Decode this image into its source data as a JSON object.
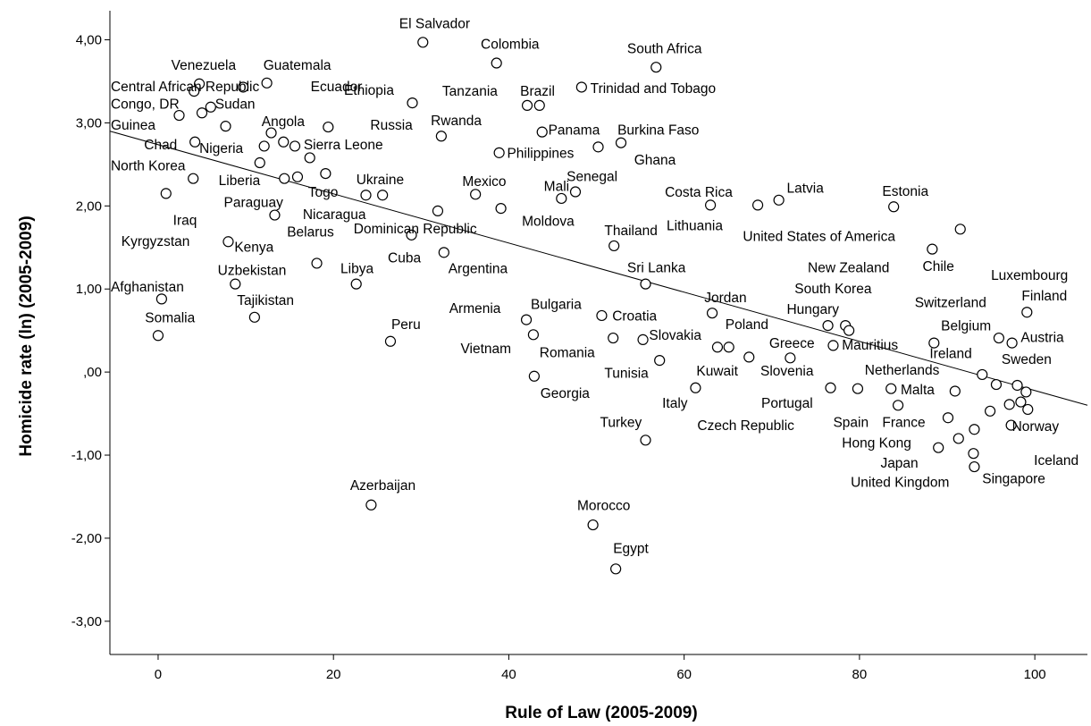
{
  "chart_data": {
    "type": "scatter",
    "xlabel": "Rule of Law (2005-2009)",
    "ylabel": "Homicide rate (ln) (2005-2009)",
    "xlim": [
      -5.5,
      106
    ],
    "ylim": [
      -3.4,
      4.35
    ],
    "x_ticks": [
      {
        "v": 0,
        "label": "0"
      },
      {
        "v": 20,
        "label": "20"
      },
      {
        "v": 40,
        "label": "40"
      },
      {
        "v": 60,
        "label": "60"
      },
      {
        "v": 80,
        "label": "80"
      },
      {
        "v": 100,
        "label": "100"
      }
    ],
    "y_ticks": [
      {
        "v": 4,
        "label": "4,00"
      },
      {
        "v": 3,
        "label": "3,00"
      },
      {
        "v": 2,
        "label": "2,00"
      },
      {
        "v": 1,
        "label": "1,00"
      },
      {
        "v": 0,
        "label": ",00"
      },
      {
        "v": -1,
        "label": "-1,00"
      },
      {
        "v": -2,
        "label": "-2,00"
      },
      {
        "v": -3,
        "label": "-3,00"
      }
    ],
    "fit_line": {
      "x": [
        -5.5,
        106
      ],
      "y": [
        2.9,
        -0.4
      ]
    },
    "grid": false,
    "points": [
      {
        "x": 30.2,
        "y": 3.97
      },
      {
        "x": 38.6,
        "y": 3.72
      },
      {
        "x": 56.8,
        "y": 3.67
      },
      {
        "x": 4.7,
        "y": 3.47
      },
      {
        "x": 9.7,
        "y": 3.43
      },
      {
        "x": 12.4,
        "y": 3.48
      },
      {
        "x": 4.1,
        "y": 3.38
      },
      {
        "x": 29.0,
        "y": 3.24
      },
      {
        "x": 48.3,
        "y": 3.43
      },
      {
        "x": 42.1,
        "y": 3.21
      },
      {
        "x": 43.5,
        "y": 3.21
      },
      {
        "x": 6.0,
        "y": 3.19
      },
      {
        "x": 5.0,
        "y": 3.12
      },
      {
        "x": 2.4,
        "y": 3.09
      },
      {
        "x": 7.7,
        "y": 2.96
      },
      {
        "x": 19.4,
        "y": 2.95
      },
      {
        "x": 12.9,
        "y": 2.88
      },
      {
        "x": 32.3,
        "y": 2.84
      },
      {
        "x": 43.8,
        "y": 2.89
      },
      {
        "x": 4.2,
        "y": 2.77
      },
      {
        "x": 12.1,
        "y": 2.72
      },
      {
        "x": 14.3,
        "y": 2.77
      },
      {
        "x": 15.6,
        "y": 2.72
      },
      {
        "x": 17.3,
        "y": 2.58
      },
      {
        "x": 50.2,
        "y": 2.71
      },
      {
        "x": 52.8,
        "y": 2.76
      },
      {
        "x": 38.9,
        "y": 2.64
      },
      {
        "x": 11.6,
        "y": 2.52
      },
      {
        "x": 15.9,
        "y": 2.35
      },
      {
        "x": 19.1,
        "y": 2.39
      },
      {
        "x": 4.0,
        "y": 2.33
      },
      {
        "x": 14.4,
        "y": 2.33
      },
      {
        "x": 0.9,
        "y": 2.15
      },
      {
        "x": 23.7,
        "y": 2.13
      },
      {
        "x": 25.6,
        "y": 2.13
      },
      {
        "x": 36.2,
        "y": 2.14
      },
      {
        "x": 47.6,
        "y": 2.17
      },
      {
        "x": 46.0,
        "y": 2.09
      },
      {
        "x": 13.3,
        "y": 1.89
      },
      {
        "x": 31.9,
        "y": 1.94
      },
      {
        "x": 39.1,
        "y": 1.97
      },
      {
        "x": 63.0,
        "y": 2.01
      },
      {
        "x": 68.4,
        "y": 2.01
      },
      {
        "x": 70.8,
        "y": 2.07
      },
      {
        "x": 83.9,
        "y": 1.99
      },
      {
        "x": 28.9,
        "y": 1.65
      },
      {
        "x": 8.0,
        "y": 1.57
      },
      {
        "x": 32.6,
        "y": 1.44
      },
      {
        "x": 52.0,
        "y": 1.52
      },
      {
        "x": 91.5,
        "y": 1.72
      },
      {
        "x": 88.3,
        "y": 1.48
      },
      {
        "x": 18.1,
        "y": 1.31
      },
      {
        "x": 22.6,
        "y": 1.06
      },
      {
        "x": 8.8,
        "y": 1.06
      },
      {
        "x": 55.6,
        "y": 1.06
      },
      {
        "x": 0.4,
        "y": 0.88
      },
      {
        "x": 11.0,
        "y": 0.66
      },
      {
        "x": 0.0,
        "y": 0.44
      },
      {
        "x": 26.5,
        "y": 0.37
      },
      {
        "x": 42.0,
        "y": 0.63
      },
      {
        "x": 42.8,
        "y": 0.45
      },
      {
        "x": 50.6,
        "y": 0.68
      },
      {
        "x": 51.9,
        "y": 0.41
      },
      {
        "x": 55.3,
        "y": 0.39
      },
      {
        "x": 63.2,
        "y": 0.71
      },
      {
        "x": 63.8,
        "y": 0.3
      },
      {
        "x": 65.1,
        "y": 0.3
      },
      {
        "x": 76.4,
        "y": 0.56
      },
      {
        "x": 78.4,
        "y": 0.56
      },
      {
        "x": 78.8,
        "y": 0.5
      },
      {
        "x": 77.0,
        "y": 0.32
      },
      {
        "x": 67.4,
        "y": 0.18
      },
      {
        "x": 72.1,
        "y": 0.17
      },
      {
        "x": 88.5,
        "y": 0.35
      },
      {
        "x": 95.9,
        "y": 0.41
      },
      {
        "x": 97.4,
        "y": 0.35
      },
      {
        "x": 99.1,
        "y": 0.72
      },
      {
        "x": 57.2,
        "y": 0.14
      },
      {
        "x": 42.9,
        "y": -0.05
      },
      {
        "x": 61.3,
        "y": -0.19
      },
      {
        "x": 76.7,
        "y": -0.19
      },
      {
        "x": 79.8,
        "y": -0.2
      },
      {
        "x": 83.6,
        "y": -0.2
      },
      {
        "x": 90.9,
        "y": -0.23
      },
      {
        "x": 94.0,
        "y": -0.03
      },
      {
        "x": 95.6,
        "y": -0.15
      },
      {
        "x": 98.0,
        "y": -0.16
      },
      {
        "x": 99.0,
        "y": -0.24
      },
      {
        "x": 84.4,
        "y": -0.4
      },
      {
        "x": 97.1,
        "y": -0.39
      },
      {
        "x": 98.4,
        "y": -0.36
      },
      {
        "x": 99.2,
        "y": -0.45
      },
      {
        "x": 94.9,
        "y": -0.47
      },
      {
        "x": 90.1,
        "y": -0.55
      },
      {
        "x": 93.1,
        "y": -0.69
      },
      {
        "x": 97.3,
        "y": -0.64
      },
      {
        "x": 55.6,
        "y": -0.82
      },
      {
        "x": 89.0,
        "y": -0.91
      },
      {
        "x": 91.3,
        "y": -0.8
      },
      {
        "x": 93.0,
        "y": -0.98
      },
      {
        "x": 93.1,
        "y": -1.14
      },
      {
        "x": 24.3,
        "y": -1.6
      },
      {
        "x": 49.6,
        "y": -1.84
      },
      {
        "x": 52.2,
        "y": -2.37
      }
    ],
    "labels": [
      {
        "text": "El Salvador",
        "x": 27.5,
        "y": 4.14
      },
      {
        "text": "Colombia",
        "x": 36.8,
        "y": 3.89
      },
      {
        "text": "South Africa",
        "x": 53.5,
        "y": 3.84
      },
      {
        "text": "Venezuela",
        "x": 1.5,
        "y": 3.64
      },
      {
        "text": "Guatemala",
        "x": 12.0,
        "y": 3.64
      },
      {
        "text": "Central African Republic",
        "x": -5.4,
        "y": 3.38
      },
      {
        "text": "Ecuador",
        "x": 17.4,
        "y": 3.38
      },
      {
        "text": "Ethiopia",
        "x": 21.2,
        "y": 3.34
      },
      {
        "text": "Tanzania",
        "x": 32.4,
        "y": 3.33
      },
      {
        "text": "Brazil",
        "x": 41.3,
        "y": 3.33
      },
      {
        "text": "Trinidad and Tobago",
        "x": 49.3,
        "y": 3.36
      },
      {
        "text": "Congo, DR",
        "x": -5.4,
        "y": 3.17
      },
      {
        "text": "Sudan",
        "x": 6.5,
        "y": 3.17
      },
      {
        "text": "Guinea",
        "x": -5.4,
        "y": 2.92
      },
      {
        "text": "Angola",
        "x": 11.8,
        "y": 2.96
      },
      {
        "text": "Russia",
        "x": 24.2,
        "y": 2.92
      },
      {
        "text": "Rwanda",
        "x": 31.1,
        "y": 2.97
      },
      {
        "text": "Panama",
        "x": 44.5,
        "y": 2.86
      },
      {
        "text": "Burkina Faso",
        "x": 52.4,
        "y": 2.86
      },
      {
        "text": "Chad",
        "x": -1.6,
        "y": 2.68
      },
      {
        "text": "Nigeria",
        "x": 4.7,
        "y": 2.64
      },
      {
        "text": "Sierra Leone",
        "x": 16.6,
        "y": 2.68
      },
      {
        "text": "Philippines",
        "x": 39.8,
        "y": 2.58
      },
      {
        "text": "Ghana",
        "x": 54.3,
        "y": 2.5
      },
      {
        "text": "North Korea",
        "x": -5.4,
        "y": 2.43
      },
      {
        "text": "Senegal",
        "x": 46.6,
        "y": 2.3
      },
      {
        "text": "Liberia",
        "x": 6.9,
        "y": 2.25
      },
      {
        "text": "Ukraine",
        "x": 22.6,
        "y": 2.26
      },
      {
        "text": "Mexico",
        "x": 34.7,
        "y": 2.24
      },
      {
        "text": "Mali",
        "x": 44.0,
        "y": 2.18
      },
      {
        "text": "Togo",
        "x": 17.1,
        "y": 2.11
      },
      {
        "text": "Costa Rica",
        "x": 57.8,
        "y": 2.11
      },
      {
        "text": "Latvia",
        "x": 71.7,
        "y": 2.16
      },
      {
        "text": "Estonia",
        "x": 82.6,
        "y": 2.12
      },
      {
        "text": "Paraguay",
        "x": 7.5,
        "y": 1.99
      },
      {
        "text": "Nicaragua",
        "x": 16.5,
        "y": 1.84
      },
      {
        "text": "Iraq",
        "x": 1.7,
        "y": 1.77
      },
      {
        "text": "Moldova",
        "x": 41.5,
        "y": 1.76
      },
      {
        "text": "Thailand",
        "x": 50.9,
        "y": 1.65
      },
      {
        "text": "Lithuania",
        "x": 58.0,
        "y": 1.71
      },
      {
        "text": "Belarus",
        "x": 14.7,
        "y": 1.63
      },
      {
        "text": "Dominican Republic",
        "x": 22.3,
        "y": 1.67
      },
      {
        "text": "United States of America",
        "x": 66.7,
        "y": 1.58
      },
      {
        "text": "Kyrgyzstan",
        "x": -4.2,
        "y": 1.52
      },
      {
        "text": "Kenya",
        "x": 8.7,
        "y": 1.45
      },
      {
        "text": "Cuba",
        "x": 26.2,
        "y": 1.32
      },
      {
        "text": "Libya",
        "x": 20.8,
        "y": 1.19
      },
      {
        "text": "Uzbekistan",
        "x": 6.8,
        "y": 1.17
      },
      {
        "text": "Argentina",
        "x": 33.1,
        "y": 1.19
      },
      {
        "text": "Sri Lanka",
        "x": 53.5,
        "y": 1.2
      },
      {
        "text": "New Zealand",
        "x": 74.1,
        "y": 1.2
      },
      {
        "text": "Chile",
        "x": 87.2,
        "y": 1.22
      },
      {
        "text": "Luxembourg",
        "x": 95.0,
        "y": 1.11
      },
      {
        "text": "Afghanistan",
        "x": -5.4,
        "y": 0.97
      },
      {
        "text": "South Korea",
        "x": 72.6,
        "y": 0.95
      },
      {
        "text": "Tajikistan",
        "x": 9.0,
        "y": 0.81
      },
      {
        "text": "Jordan",
        "x": 62.3,
        "y": 0.84
      },
      {
        "text": "Finland",
        "x": 98.5,
        "y": 0.86
      },
      {
        "text": "Bulgaria",
        "x": 42.5,
        "y": 0.76
      },
      {
        "text": "Armenia",
        "x": 33.2,
        "y": 0.71
      },
      {
        "text": "Hungary",
        "x": 71.7,
        "y": 0.7
      },
      {
        "text": "Switzerland",
        "x": 86.3,
        "y": 0.78
      },
      {
        "text": "Croatia",
        "x": 51.8,
        "y": 0.62
      },
      {
        "text": "Somalia",
        "x": -1.5,
        "y": 0.6
      },
      {
        "text": "Peru",
        "x": 26.6,
        "y": 0.52
      },
      {
        "text": "Poland",
        "x": 64.7,
        "y": 0.52
      },
      {
        "text": "Belgium",
        "x": 89.3,
        "y": 0.5
      },
      {
        "text": "Slovakia",
        "x": 56.0,
        "y": 0.39
      },
      {
        "text": "Austria",
        "x": 98.4,
        "y": 0.36
      },
      {
        "text": "Greece",
        "x": 69.7,
        "y": 0.29
      },
      {
        "text": "Mauritius",
        "x": 78.0,
        "y": 0.27
      },
      {
        "text": "Vietnam",
        "x": 34.5,
        "y": 0.23
      },
      {
        "text": "Romania",
        "x": 43.5,
        "y": 0.18
      },
      {
        "text": "Ireland",
        "x": 88.0,
        "y": 0.17
      },
      {
        "text": "Sweden",
        "x": 96.2,
        "y": 0.1
      },
      {
        "text": "Netherlands",
        "x": 80.6,
        "y": -0.03
      },
      {
        "text": "Tunisia",
        "x": 50.9,
        "y": -0.07
      },
      {
        "text": "Kuwait",
        "x": 61.4,
        "y": -0.04
      },
      {
        "text": "Slovenia",
        "x": 68.7,
        "y": -0.04
      },
      {
        "text": "Georgia",
        "x": 43.6,
        "y": -0.31
      },
      {
        "text": "Malta",
        "x": 84.7,
        "y": -0.27
      },
      {
        "text": "Italy",
        "x": 57.5,
        "y": -0.43
      },
      {
        "text": "Portugal",
        "x": 68.8,
        "y": -0.43
      },
      {
        "text": "Turkey",
        "x": 50.4,
        "y": -0.66
      },
      {
        "text": "Czech Republic",
        "x": 61.5,
        "y": -0.7
      },
      {
        "text": "Spain",
        "x": 77.0,
        "y": -0.66
      },
      {
        "text": "France",
        "x": 82.6,
        "y": -0.66
      },
      {
        "text": "Norway",
        "x": 97.4,
        "y": -0.71
      },
      {
        "text": "Hong Kong",
        "x": 78.0,
        "y": -0.91
      },
      {
        "text": "Japan",
        "x": 82.4,
        "y": -1.15
      },
      {
        "text": "Iceland",
        "x": 99.9,
        "y": -1.12
      },
      {
        "text": "United Kingdom",
        "x": 79.0,
        "y": -1.38
      },
      {
        "text": "Singapore",
        "x": 94.0,
        "y": -1.34
      },
      {
        "text": "Azerbaijan",
        "x": 21.9,
        "y": -1.42
      },
      {
        "text": "Morocco",
        "x": 47.8,
        "y": -1.66
      },
      {
        "text": "Egypt",
        "x": 51.9,
        "y": -2.18
      }
    ]
  }
}
